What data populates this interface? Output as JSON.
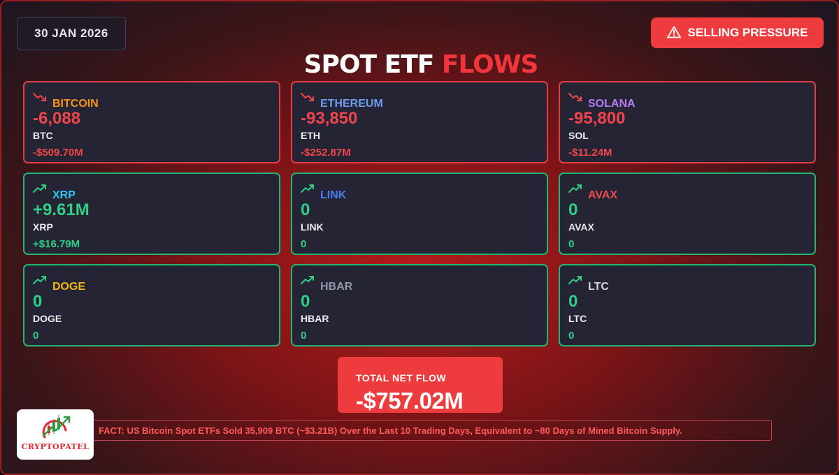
{
  "header": {
    "date": "30 JAN 2026",
    "alert_icon": "warning-triangle-icon",
    "alert_label": "SELLING PRESSURE",
    "title_main": "SPOT ETF",
    "title_accent": "FLOWS"
  },
  "colors": {
    "negative": "#f0454b",
    "positive": "#2fcf86",
    "alert_bg": "#ee3c3e",
    "card_bg": "#242434"
  },
  "assets": [
    {
      "name": "BITCOIN",
      "amount": "-6,088",
      "unit": "BTC",
      "usd": "-$509.70M",
      "direction": "down",
      "name_color": "#f7931a"
    },
    {
      "name": "ETHEREUM",
      "amount": "-93,850",
      "unit": "ETH",
      "usd": "-$252.87M",
      "direction": "down",
      "name_color": "#6f9bf0"
    },
    {
      "name": "SOLANA",
      "amount": "-95,800",
      "unit": "SOL",
      "usd": "-$11.24M",
      "direction": "down",
      "name_color": "#b57cf2"
    },
    {
      "name": "XRP",
      "amount": "+9.61M",
      "unit": "XRP",
      "usd": "+$16.79M",
      "direction": "up",
      "name_color": "#2ec7ee"
    },
    {
      "name": "LINK",
      "amount": "0",
      "unit": "LINK",
      "usd": "0",
      "direction": "up",
      "name_color": "#4a7bf0"
    },
    {
      "name": "AVAX",
      "amount": "0",
      "unit": "AVAX",
      "usd": "0",
      "direction": "up",
      "name_color": "#f04b4e"
    },
    {
      "name": "DOGE",
      "amount": "0",
      "unit": "DOGE",
      "usd": "0",
      "direction": "up",
      "name_color": "#f2b619"
    },
    {
      "name": "HBAR",
      "amount": "0",
      "unit": "HBAR",
      "usd": "0",
      "direction": "up",
      "name_color": "#9097a6"
    },
    {
      "name": "LTC",
      "amount": "0",
      "unit": "LTC",
      "usd": "0",
      "direction": "up",
      "name_color": "#d4d6dc"
    }
  ],
  "total": {
    "label": "TOTAL NET FLOW",
    "value": "-$757.02M"
  },
  "fact": {
    "text": "FACT: US Bitcoin Spot ETFs Sold 35,909 BTC (~$3.21B) Over the Last 10 Trading Days, Equivalent to ~80 Days of Mined Bitcoin Supply."
  },
  "logo": {
    "text": "CRYPTOPATEL",
    "icon": "candlestick-chart-logo-icon"
  }
}
